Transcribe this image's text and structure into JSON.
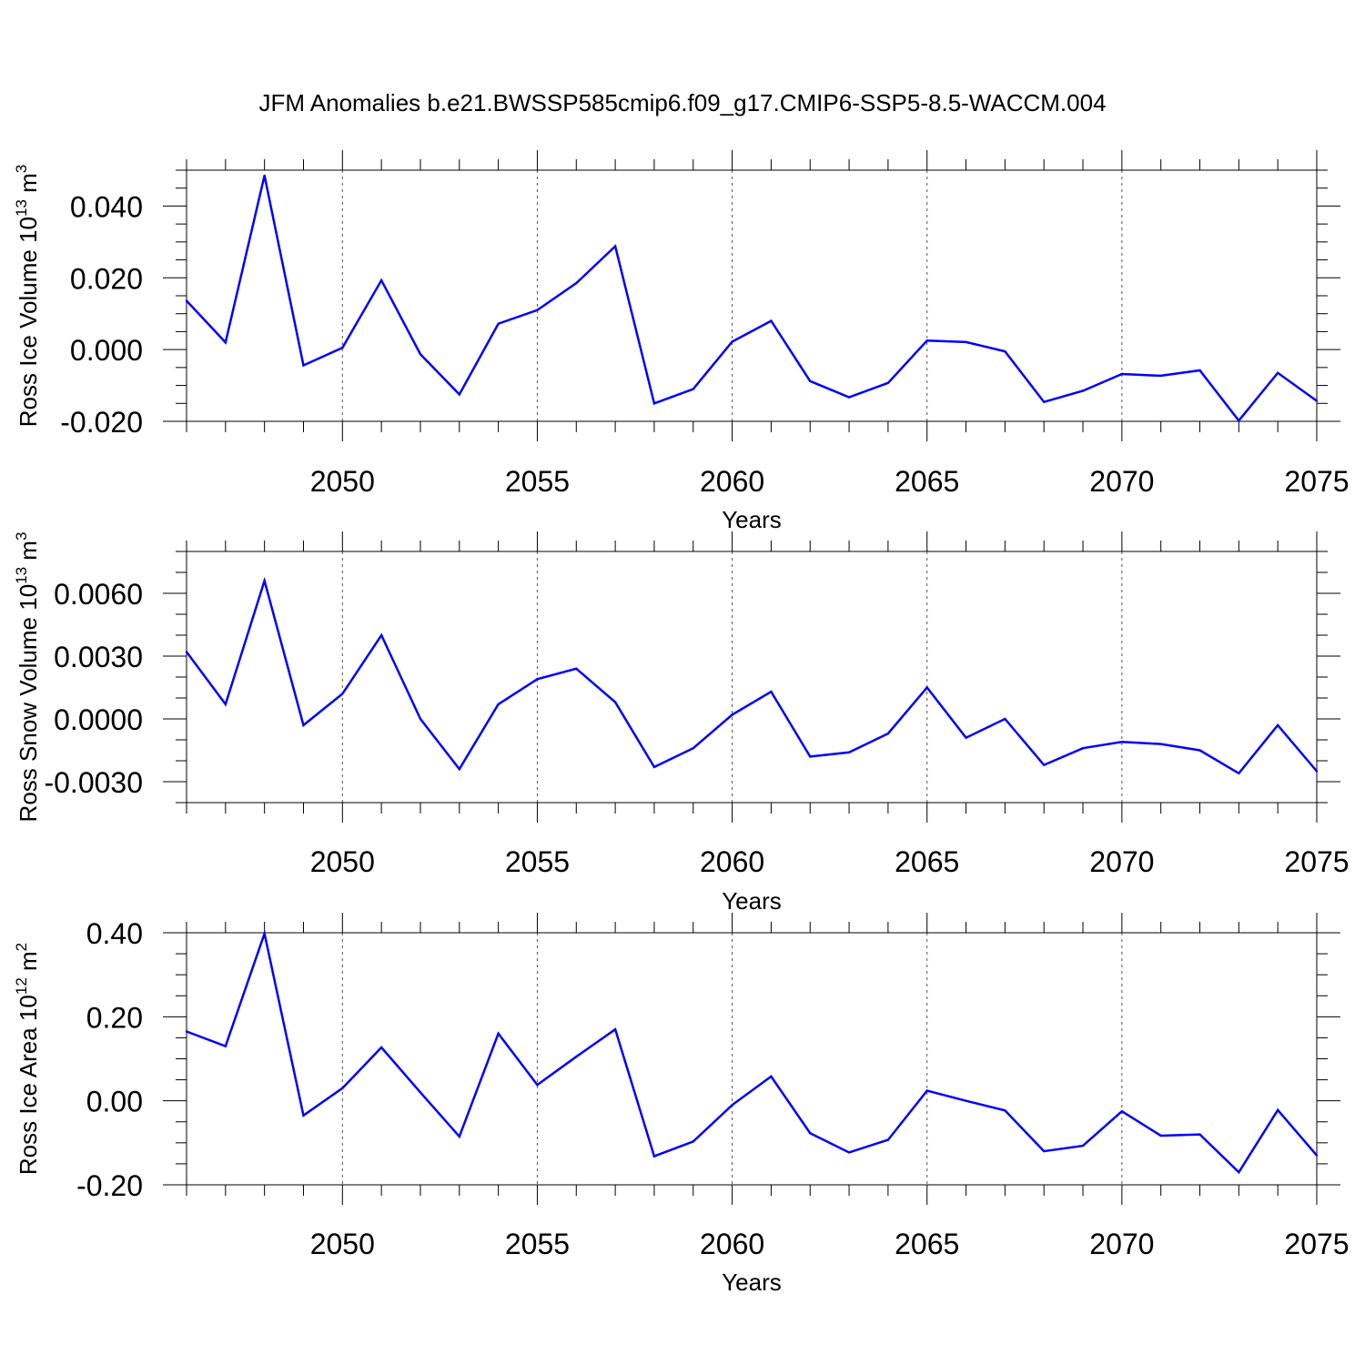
{
  "title": "JFM Anomalies b.e21.BWSSP585cmip6.f09_g17.CMIP6-SSP5-8.5-WACCM.004",
  "colors": {
    "line": "#0000ff",
    "axis": "#000000",
    "grid": "#555555"
  },
  "chart_data": [
    {
      "type": "line",
      "ylabel": "Ross Ice Volume 10",
      "ylabel_sup": "13",
      "ylabel_unit": " m",
      "ylabel_unit_sup": "3",
      "xlabel": "Years",
      "xlim": [
        2046,
        2075
      ],
      "ylim": [
        -0.02,
        0.05
      ],
      "xticks": [
        2050,
        2055,
        2060,
        2065,
        2070,
        2075
      ],
      "yticks": [
        -0.02,
        0.0,
        0.02,
        0.04
      ],
      "ytick_labels": [
        "-0.020",
        "0.000",
        "0.020",
        "0.040"
      ],
      "yminor": 0.005,
      "grid": "dashed vertical at major x ticks",
      "x": [
        2046,
        2047,
        2048,
        2049,
        2050,
        2051,
        2052,
        2053,
        2054,
        2055,
        2056,
        2057,
        2058,
        2059,
        2060,
        2061,
        2062,
        2063,
        2064,
        2065,
        2066,
        2067,
        2068,
        2069,
        2070,
        2071,
        2072,
        2073,
        2074,
        2075
      ],
      "values": [
        0.0136,
        0.002,
        0.0485,
        -0.0044,
        0.0005,
        0.0193,
        -0.0013,
        -0.0125,
        0.0072,
        0.011,
        0.0185,
        0.0288,
        -0.015,
        -0.011,
        0.0022,
        0.008,
        -0.0088,
        -0.0133,
        -0.0093,
        0.0025,
        0.0021,
        -0.0005,
        -0.0146,
        -0.0115,
        -0.0068,
        -0.0073,
        -0.0058,
        -0.0198,
        -0.0065,
        -0.0143
      ]
    },
    {
      "type": "line",
      "ylabel": "Ross Snow Volume 10",
      "ylabel_sup": "13",
      "ylabel_unit": " m",
      "ylabel_unit_sup": "3",
      "xlabel": "Years",
      "xlim": [
        2046,
        2075
      ],
      "ylim": [
        -0.004,
        0.008
      ],
      "xticks": [
        2050,
        2055,
        2060,
        2065,
        2070,
        2075
      ],
      "yticks": [
        -0.003,
        0.0,
        0.003,
        0.006
      ],
      "ytick_labels": [
        "-0.0030",
        "0.0000",
        "0.0030",
        "0.0060"
      ],
      "yminor": 0.001,
      "grid": "dashed vertical at major x ticks",
      "x": [
        2046,
        2047,
        2048,
        2049,
        2050,
        2051,
        2052,
        2053,
        2054,
        2055,
        2056,
        2057,
        2058,
        2059,
        2060,
        2061,
        2062,
        2063,
        2064,
        2065,
        2066,
        2067,
        2068,
        2069,
        2070,
        2071,
        2072,
        2073,
        2074,
        2075
      ],
      "values": [
        0.0032,
        0.0007,
        0.0066,
        -0.0003,
        0.0012,
        0.004,
        0.0,
        -0.0024,
        0.0007,
        0.0019,
        0.0024,
        0.0008,
        -0.0023,
        -0.0014,
        0.0002,
        0.0013,
        -0.0018,
        -0.0016,
        -0.0007,
        0.0015,
        -0.0009,
        0.0,
        -0.0022,
        -0.0014,
        -0.0011,
        -0.0012,
        -0.0015,
        -0.0026,
        -0.0003,
        -0.0025
      ]
    },
    {
      "type": "line",
      "ylabel": "Ross Ice Area 10",
      "ylabel_sup": "12",
      "ylabel_unit": " m",
      "ylabel_unit_sup": "2",
      "xlabel": "Years",
      "xlim": [
        2046,
        2075
      ],
      "ylim": [
        -0.2,
        0.4
      ],
      "xticks": [
        2050,
        2055,
        2060,
        2065,
        2070,
        2075
      ],
      "yticks": [
        -0.2,
        0.0,
        0.2,
        0.4
      ],
      "ytick_labels": [
        "-0.20",
        "0.00",
        "0.20",
        "0.40"
      ],
      "yminor": 0.05,
      "grid": "dashed vertical at major x ticks",
      "x": [
        2046,
        2047,
        2048,
        2049,
        2050,
        2051,
        2052,
        2053,
        2054,
        2055,
        2056,
        2057,
        2058,
        2059,
        2060,
        2061,
        2062,
        2063,
        2064,
        2065,
        2066,
        2067,
        2068,
        2069,
        2070,
        2071,
        2072,
        2073,
        2074,
        2075
      ],
      "values": [
        0.165,
        0.13,
        0.398,
        -0.035,
        0.03,
        0.127,
        0.02,
        -0.085,
        0.16,
        0.038,
        0.105,
        0.17,
        -0.132,
        -0.097,
        -0.01,
        0.058,
        -0.077,
        -0.123,
        -0.093,
        0.024,
        0.0,
        -0.023,
        -0.12,
        -0.107,
        -0.025,
        -0.083,
        -0.08,
        -0.17,
        -0.022,
        -0.13
      ]
    }
  ]
}
